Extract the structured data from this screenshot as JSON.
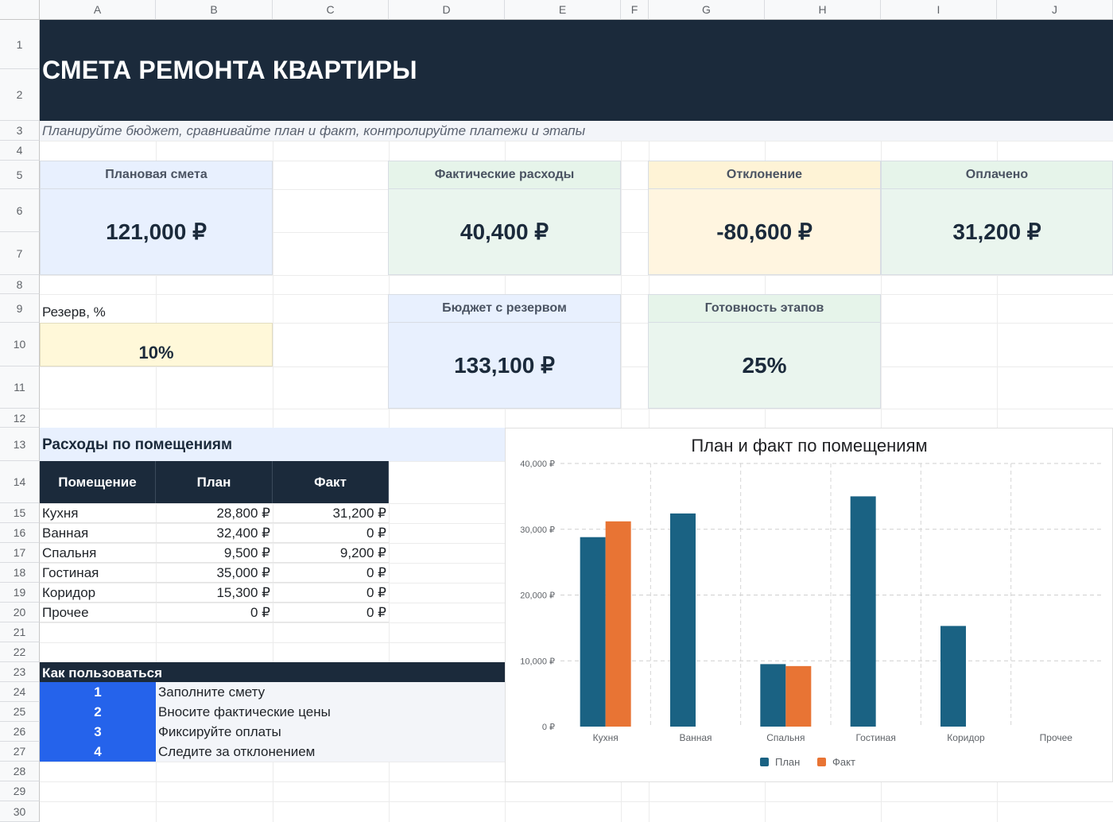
{
  "columns": [
    "A",
    "B",
    "C",
    "D",
    "E",
    "F",
    "G",
    "H",
    "I",
    "J"
  ],
  "rows": [
    "1",
    "2",
    "3",
    "4",
    "5",
    "6",
    "7",
    "8",
    "9",
    "10",
    "11",
    "12",
    "13",
    "14",
    "15",
    "16",
    "17",
    "18",
    "19",
    "20",
    "21",
    "22",
    "23",
    "24",
    "25",
    "26",
    "27",
    "28",
    "29",
    "30"
  ],
  "header": {
    "title": "СМЕТА РЕМОНТА КВАРТИРЫ",
    "subtitle": "Планируйте бюджет, сравнивайте план и факт, контролируйте платежи и этапы"
  },
  "cards": {
    "plan": {
      "label": "Плановая смета",
      "value": "121,000 ₽"
    },
    "fact": {
      "label": "Фактические расходы",
      "value": "40,400 ₽"
    },
    "deviation": {
      "label": "Отклонение",
      "value": "-80,600 ₽"
    },
    "paid": {
      "label": "Оплачено",
      "value": "31,200 ₽"
    },
    "budget_reserve": {
      "label": "Бюджет с резервом",
      "value": "133,100 ₽"
    },
    "readiness": {
      "label": "Готовность этапов",
      "value": "25%"
    }
  },
  "reserve": {
    "label": "Резерв, %",
    "value": "10%"
  },
  "rooms": {
    "section_title": "Расходы по помещениям",
    "headers": {
      "room": "Помещение",
      "plan": "План",
      "fact": "Факт"
    },
    "items": [
      {
        "room": "Кухня",
        "plan": "28,800 ₽",
        "fact": "31,200 ₽"
      },
      {
        "room": "Ванная",
        "plan": "32,400 ₽",
        "fact": "0 ₽"
      },
      {
        "room": "Спальня",
        "plan": "9,500 ₽",
        "fact": "9,200 ₽"
      },
      {
        "room": "Гостиная",
        "plan": "35,000 ₽",
        "fact": "0 ₽"
      },
      {
        "room": "Коридор",
        "plan": "15,300 ₽",
        "fact": "0 ₽"
      },
      {
        "room": "Прочее",
        "plan": "0 ₽",
        "fact": "0 ₽"
      }
    ]
  },
  "how_to": {
    "title": "Как пользоваться",
    "steps": [
      {
        "num": "1",
        "text": "Заполните смету"
      },
      {
        "num": "2",
        "text": "Вносите фактические цены"
      },
      {
        "num": "3",
        "text": "Фиксируйте оплаты"
      },
      {
        "num": "4",
        "text": "Следите за отклонением"
      }
    ]
  },
  "colors": {
    "dark": "#1b2a3b",
    "plan_series": "#1a6283",
    "fact_series": "#e87434",
    "step_blue": "#2563eb"
  },
  "chart_data": {
    "type": "bar",
    "title": "План и факт по помещениям",
    "categories": [
      "Кухня",
      "Ванная",
      "Спальня",
      "Гостиная",
      "Коридор",
      "Прочее"
    ],
    "series": [
      {
        "name": "План",
        "values": [
          28800,
          32400,
          9500,
          35000,
          15300,
          0
        ]
      },
      {
        "name": "Факт",
        "values": [
          31200,
          0,
          9200,
          0,
          0,
          0
        ]
      }
    ],
    "ylim": [
      0,
      40000
    ],
    "yticks": [
      "0 ₽",
      "10,000 ₽",
      "20,000 ₽",
      "30,000 ₽",
      "40,000 ₽"
    ],
    "grid": true,
    "legend_position": "bottom"
  }
}
